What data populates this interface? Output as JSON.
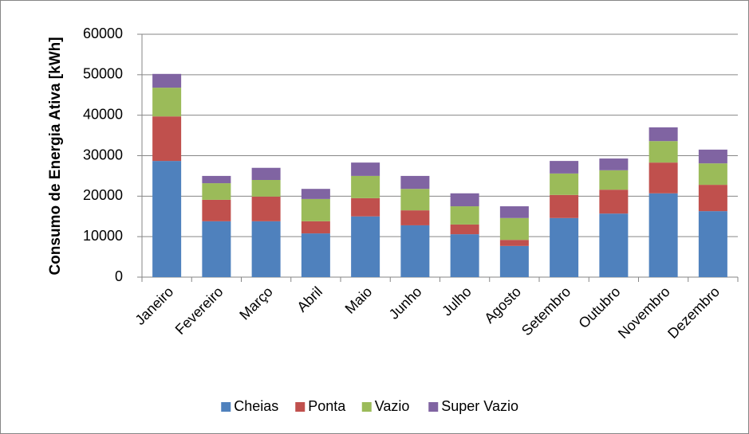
{
  "chart_data": {
    "type": "stacked_bar",
    "y_label": "Consumo de Energia Ativa [kWh]",
    "categories": [
      "Janeiro",
      "Fevereiro",
      "Março",
      "Abril",
      "Maio",
      "Junho",
      "Julho",
      "Agosto",
      "Setembro",
      "Outubro",
      "Novembro",
      "Dezembro"
    ],
    "series": [
      {
        "name": "Cheias",
        "color": "#4f81bd",
        "values": [
          28700,
          13800,
          13800,
          10800,
          15000,
          12800,
          10600,
          7700,
          14600,
          15700,
          20700,
          16300
        ]
      },
      {
        "name": "Ponta",
        "color": "#c0504d",
        "values": [
          11000,
          5300,
          6100,
          3000,
          4500,
          3700,
          2400,
          1500,
          5700,
          5900,
          7600,
          6500
        ]
      },
      {
        "name": "Vazio",
        "color": "#9bbb59",
        "values": [
          7100,
          4100,
          4100,
          5500,
          5500,
          5300,
          4500,
          5400,
          5300,
          4800,
          5300,
          5300
        ]
      },
      {
        "name": "Super Vazio",
        "color": "#8064a2",
        "values": [
          3400,
          1800,
          3000,
          2500,
          3300,
          3200,
          3200,
          2900,
          3100,
          2900,
          3400,
          3400
        ]
      }
    ],
    "ylim": [
      0,
      60000
    ],
    "yticks": [
      0,
      10000,
      20000,
      30000,
      40000,
      50000,
      60000
    ],
    "grid": true,
    "legend": "bottom"
  }
}
